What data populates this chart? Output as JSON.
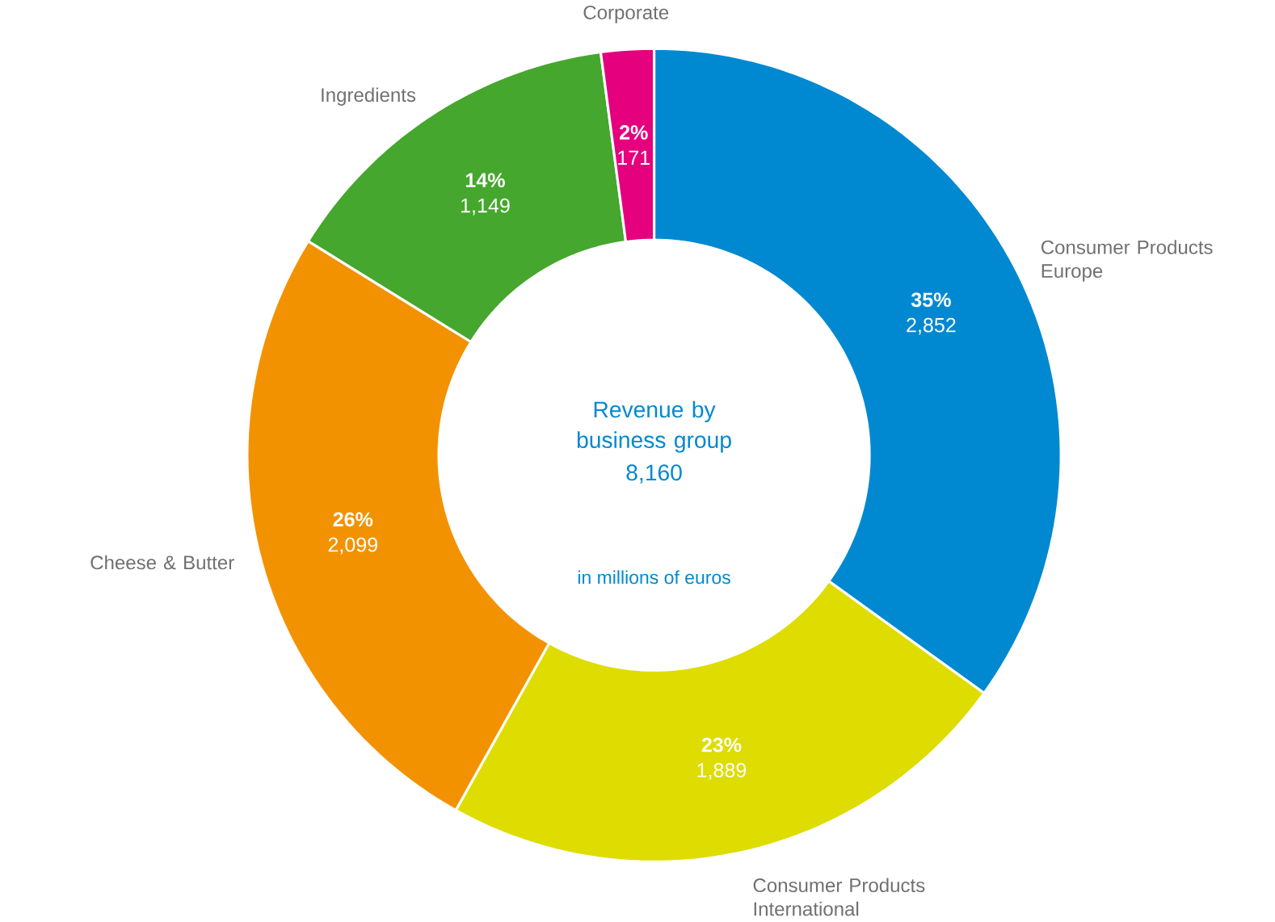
{
  "chart_data": {
    "type": "donut",
    "title": "Revenue by business group",
    "subtitle": "in millions of euros",
    "annotations": [
      "8,160"
    ],
    "categories": [
      "Consumer Products Europe",
      "Consumer Products International",
      "Cheese & Butter",
      "Ingredients",
      "Corporate"
    ],
    "values": [
      2852,
      1889,
      2099,
      1149,
      171
    ],
    "colors": [
      "#0089d0",
      "#dedc00",
      "#f39200",
      "#45a72d",
      "#e5007d"
    ],
    "value_labels": [
      "**35%** 2,852",
      "**23%** 1,889",
      "**26%** 2,099",
      "**14%** 1,149",
      "**2%** 171"
    ]
  }
}
